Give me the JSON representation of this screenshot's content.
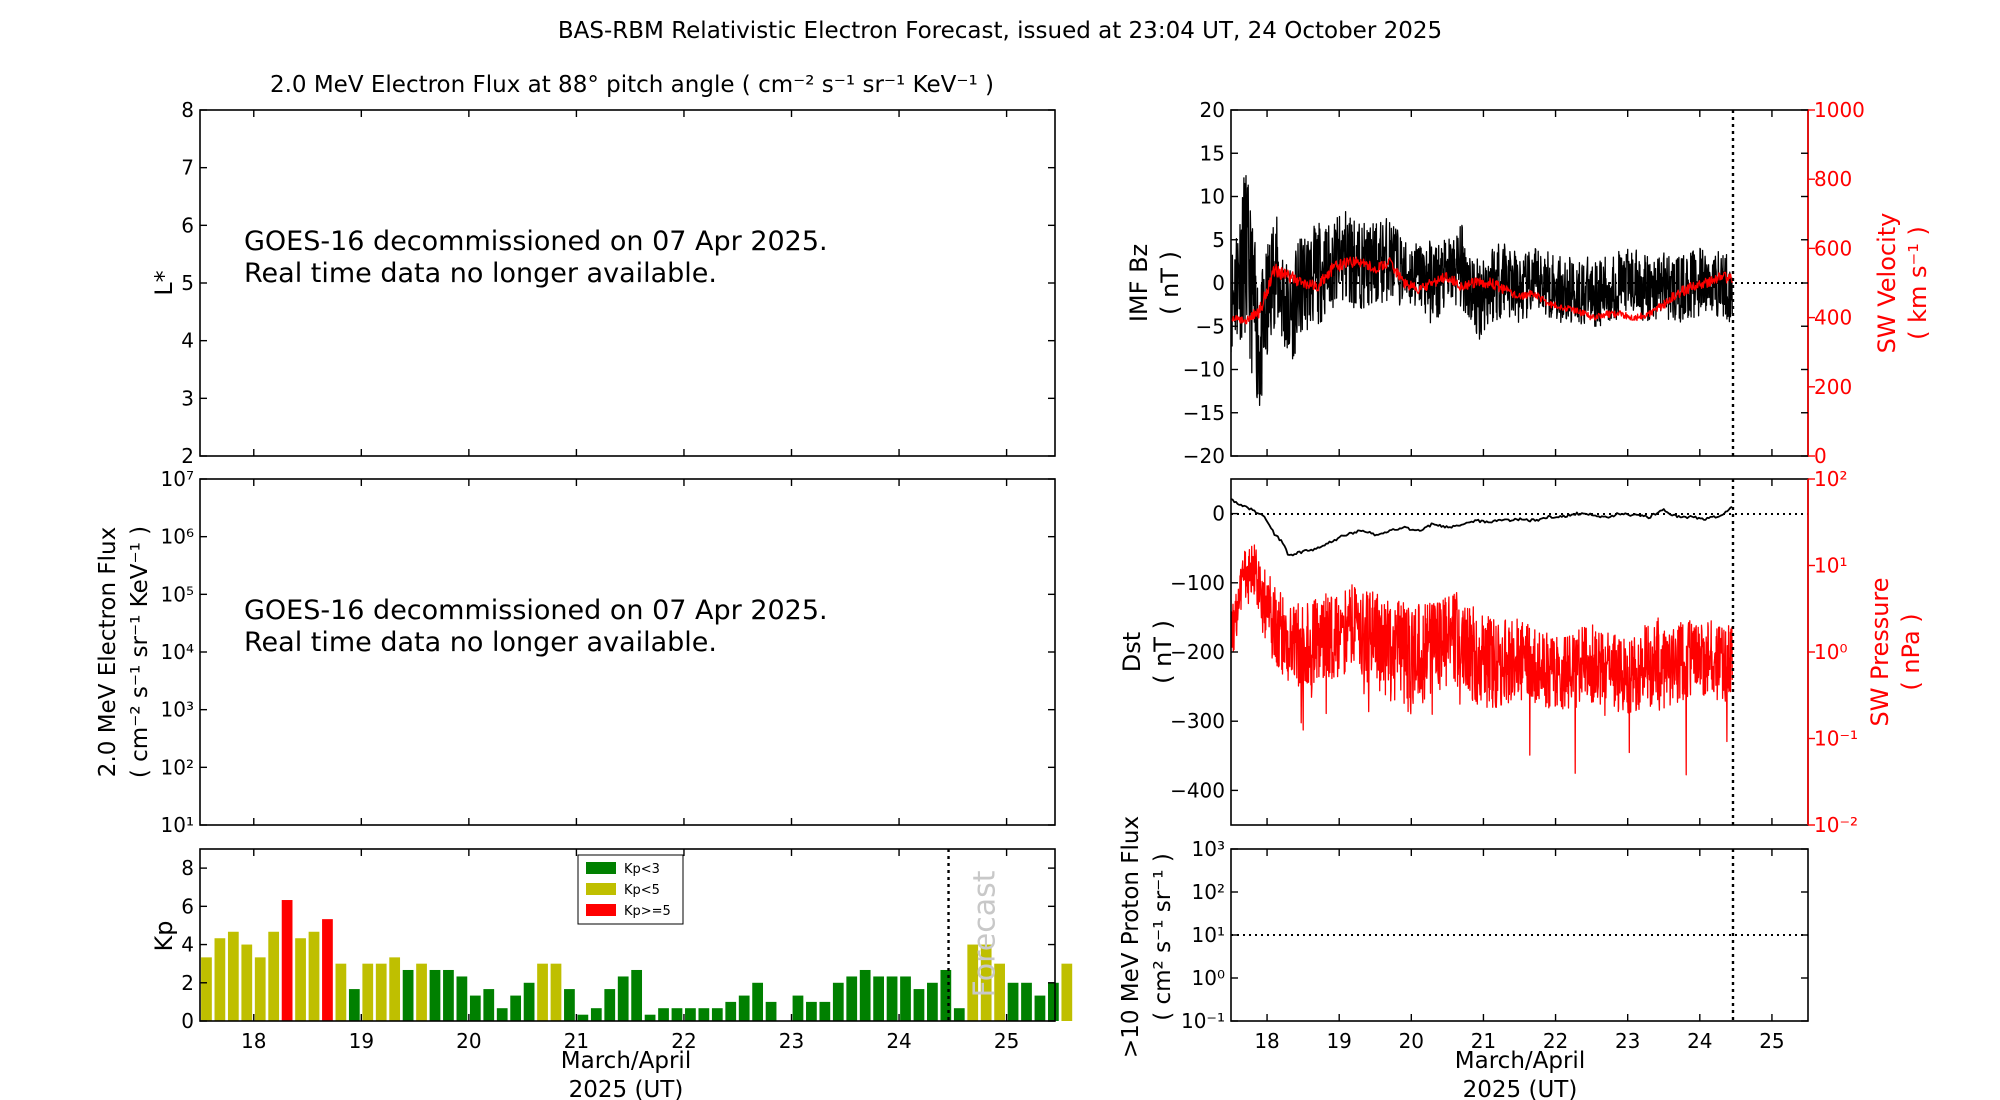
{
  "figure_title": "BAS-RBM Relativistic Electron Forecast, issued at 23:04 UT, 24 October 2025",
  "colors": {
    "kp_low": "#008000",
    "kp_mid": "#bfbf00",
    "kp_high": "#ff0000",
    "sw": "#ff0000",
    "axes": "#000000"
  },
  "notice": {
    "line1": "GOES-16 decommissioned on 07 Apr 2025.",
    "line2": "Real time data no longer available."
  },
  "chart_data": [
    {
      "id": "lstar",
      "type": "heatmap",
      "title": "2.0 MeV Electron Flux at 88° pitch angle ( cm⁻² s⁻¹ sr⁻¹ KeV⁻¹ )",
      "ylabel": "L*",
      "ylim": [
        2,
        8
      ],
      "yticks": [
        "2",
        "3",
        "4",
        "5",
        "6",
        "7",
        "8"
      ],
      "xlim": [
        17.5,
        25.45
      ],
      "data": "none"
    },
    {
      "id": "eflux",
      "type": "line",
      "y_scale": "log",
      "ylabel": [
        "2.0 MeV Electron Flux",
        "( cm⁻² s⁻¹ sr⁻¹ KeV⁻¹ )"
      ],
      "ylim": [
        10,
        10000000
      ],
      "yticks": [
        "10¹",
        "10²",
        "10³",
        "10⁴",
        "10⁵",
        "10⁶",
        "10⁷"
      ],
      "xlim": [
        17.5,
        25.45
      ],
      "data": "none"
    },
    {
      "id": "kp",
      "type": "bar",
      "ylabel": "Kp",
      "ylim": [
        0,
        9
      ],
      "yticks": [
        "0",
        "2",
        "4",
        "6",
        "8"
      ],
      "xlim": [
        17.5,
        25.45
      ],
      "x_day_ticks": [
        "18",
        "19",
        "20",
        "21",
        "22",
        "23",
        "24",
        "25"
      ],
      "xlabel": [
        "March/April",
        "2025 (UT)"
      ],
      "forecast_start": 24.46,
      "forecast_label": "Forecast",
      "legend": [
        {
          "label": "Kp<3",
          "color": "#008000"
        },
        {
          "label": "Kp<5",
          "color": "#bfbf00"
        },
        {
          "label": "Kp>=5",
          "color": "#ff0000"
        }
      ],
      "bar_width_days": 0.1,
      "values": [
        3.33,
        4.33,
        4.67,
        4.0,
        3.33,
        4.67,
        6.33,
        4.33,
        4.67,
        5.33,
        3.0,
        1.67,
        3.0,
        3.0,
        3.33,
        2.67,
        3.0,
        2.67,
        2.67,
        2.33,
        1.33,
        1.67,
        0.67,
        1.33,
        2.0,
        3.0,
        3.0,
        1.67,
        0.33,
        0.67,
        1.67,
        2.33,
        2.67,
        0.33,
        0.67,
        0.67,
        0.67,
        0.67,
        0.67,
        1.0,
        1.33,
        2.0,
        1.0,
        0.0,
        1.33,
        1.0,
        1.0,
        2.0,
        2.33,
        2.67,
        2.33,
        2.33,
        2.33,
        1.67,
        2.0,
        2.67,
        0.67,
        4.0,
        4.0,
        3.0,
        2.0,
        2.0,
        1.33,
        2.0,
        3.0
      ]
    },
    {
      "id": "imf",
      "type": "line",
      "ylabel": [
        "IMF Bz",
        "( nT )"
      ],
      "ylim": [
        -20,
        20
      ],
      "yticks": [
        "−20",
        "−15",
        "−10",
        "−5",
        "0",
        "5",
        "10",
        "15",
        "20"
      ],
      "y2label": [
        "SW Velocity",
        "( km s⁻¹ )"
      ],
      "y2lim": [
        0,
        1000
      ],
      "y2ticks": [
        "0",
        "200",
        "400",
        "600",
        "800",
        "1000"
      ],
      "xlim": [
        17.5,
        25.5
      ],
      "now_marker": 24.46,
      "series": [
        {
          "name": "IMF Bz",
          "color": "#000000",
          "x": [
            17.5,
            17.7,
            17.9,
            18.1,
            18.3,
            18.5,
            18.7,
            18.9,
            19.1,
            19.3,
            19.5,
            19.7,
            19.9,
            20.1,
            20.3,
            20.5,
            20.7,
            20.9,
            21.1,
            21.3,
            21.5,
            21.7,
            21.9,
            22.1,
            22.3,
            22.5,
            22.7,
            22.9,
            23.1,
            23.3,
            23.5,
            23.7,
            23.9,
            24.1,
            24.3,
            24.45
          ],
          "y": [
            -2,
            4,
            -8,
            2,
            -4,
            0,
            1,
            2,
            3,
            2,
            2,
            3,
            1,
            1,
            0,
            1,
            2,
            -2,
            0,
            1,
            -1,
            0,
            0,
            -1,
            -1,
            -1,
            -1,
            0,
            0,
            -1,
            0,
            -1,
            0,
            0,
            0,
            -1
          ],
          "noise": [
            6,
            10,
            8,
            7,
            6,
            6,
            6,
            5,
            6,
            5,
            5,
            5,
            4,
            4,
            5,
            4,
            5,
            5,
            5,
            5,
            4,
            4,
            4,
            4,
            4,
            4,
            4,
            4,
            4,
            4,
            4,
            4,
            4,
            4,
            4,
            4
          ]
        },
        {
          "name": "SW Velocity",
          "color": "#ff0000",
          "x": [
            17.5,
            17.7,
            17.9,
            18.1,
            18.3,
            18.5,
            18.7,
            18.9,
            19.1,
            19.3,
            19.5,
            19.7,
            19.9,
            20.1,
            20.3,
            20.5,
            20.7,
            20.9,
            21.1,
            21.3,
            21.5,
            21.7,
            21.9,
            22.1,
            22.3,
            22.5,
            22.7,
            22.9,
            23.1,
            23.3,
            23.5,
            23.7,
            23.9,
            24.1,
            24.3,
            24.45
          ],
          "y": [
            400,
            390,
            420,
            540,
            520,
            500,
            490,
            540,
            560,
            560,
            540,
            560,
            500,
            480,
            500,
            520,
            490,
            500,
            500,
            480,
            460,
            470,
            440,
            430,
            420,
            400,
            410,
            410,
            400,
            410,
            440,
            470,
            490,
            500,
            520,
            510
          ],
          "noise": [
            10,
            10,
            20,
            20,
            20,
            15,
            15,
            20,
            15,
            15,
            15,
            15,
            15,
            15,
            15,
            15,
            15,
            15,
            15,
            15,
            10,
            10,
            10,
            10,
            10,
            10,
            10,
            10,
            10,
            10,
            15,
            15,
            15,
            15,
            15,
            15
          ]
        }
      ]
    },
    {
      "id": "dst",
      "type": "line",
      "ylabel": [
        "Dst",
        "( nT )"
      ],
      "ylim": [
        -450,
        50
      ],
      "yticks": [
        "−400",
        "−300",
        "−200",
        "−100",
        "0"
      ],
      "y2label": [
        "SW Pressure",
        "( nPa )"
      ],
      "y2_scale": "log",
      "y2lim": [
        0.01,
        100
      ],
      "y2ticks": [
        "10⁻²",
        "10⁻¹",
        "10⁰",
        "10¹",
        "10²"
      ],
      "xlim": [
        17.5,
        25.5
      ],
      "now_marker": 24.46,
      "series": [
        {
          "name": "Dst",
          "color": "#000000",
          "x": [
            17.5,
            17.7,
            17.9,
            18.0,
            18.1,
            18.2,
            18.3,
            18.5,
            18.7,
            18.9,
            19.1,
            19.3,
            19.5,
            19.7,
            19.9,
            20.1,
            20.3,
            20.5,
            20.7,
            20.9,
            21.1,
            21.3,
            21.5,
            21.7,
            21.9,
            22.1,
            22.3,
            22.5,
            22.7,
            22.9,
            23.1,
            23.3,
            23.5,
            23.7,
            23.9,
            24.1,
            24.3,
            24.45
          ],
          "y": [
            20,
            10,
            0,
            -10,
            -30,
            -40,
            -60,
            -55,
            -50,
            -40,
            -30,
            -25,
            -30,
            -25,
            -20,
            -25,
            -15,
            -20,
            -15,
            -10,
            -12,
            -10,
            -8,
            -10,
            -5,
            -5,
            0,
            -2,
            -5,
            0,
            -2,
            -5,
            5,
            -5,
            -5,
            -8,
            -2,
            10
          ]
        },
        {
          "name": "SW Pressure",
          "color": "#ff0000",
          "x": [
            17.5,
            17.6,
            17.7,
            17.8,
            17.9,
            18.0,
            18.2,
            18.4,
            18.6,
            18.8,
            19.0,
            19.2,
            19.4,
            19.6,
            19.8,
            20.0,
            20.2,
            20.4,
            20.6,
            20.8,
            21.0,
            21.2,
            21.4,
            21.6,
            21.8,
            22.0,
            22.2,
            22.4,
            22.6,
            22.8,
            23.0,
            23.2,
            23.4,
            23.6,
            23.8,
            24.0,
            24.2,
            24.45
          ],
          "y": [
            1.5,
            3,
            8,
            10,
            5,
            3,
            1.5,
            1.2,
            1.2,
            1.5,
            1.5,
            2,
            1.5,
            1.2,
            1,
            0.8,
            1,
            1.2,
            1.5,
            1,
            0.8,
            0.7,
            0.8,
            0.8,
            0.6,
            0.6,
            0.6,
            0.7,
            0.8,
            0.6,
            0.5,
            0.6,
            0.8,
            0.7,
            0.8,
            0.9,
            0.8,
            0.7
          ],
          "noise": [
            0.3,
            0.3,
            0.3,
            0.3,
            0.3,
            0.45,
            0.5,
            0.5,
            0.5,
            0.5,
            0.5,
            0.5,
            0.55,
            0.55,
            0.6,
            0.65,
            0.6,
            0.55,
            0.55,
            0.55,
            0.55,
            0.5,
            0.5,
            0.45,
            0.45,
            0.45,
            0.45,
            0.45,
            0.5,
            0.45,
            0.45,
            0.5,
            0.5,
            0.5,
            0.45,
            0.45,
            0.45,
            0.45
          ]
        }
      ]
    },
    {
      "id": "proton",
      "type": "line",
      "y_scale": "log",
      "ylabel": [
        ">10 MeV Proton Flux",
        "( cm² s⁻¹ sr⁻¹ )"
      ],
      "ylim": [
        0.1,
        1000
      ],
      "yticks": [
        "10⁻¹",
        "10⁰",
        "10¹",
        "10²",
        "10³"
      ],
      "threshold": 10,
      "xlim": [
        17.5,
        25.5
      ],
      "now_marker": 24.46,
      "x_day_ticks": [
        "18",
        "19",
        "20",
        "21",
        "22",
        "23",
        "24",
        "25"
      ],
      "xlabel": [
        "March/April",
        "2025 (UT)"
      ]
    }
  ]
}
